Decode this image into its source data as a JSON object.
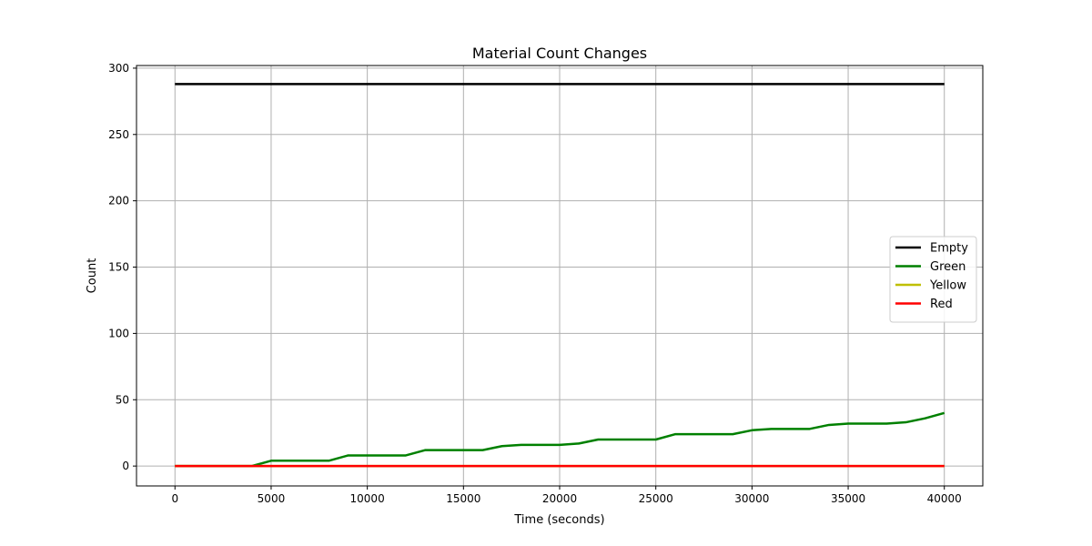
{
  "chart_data": {
    "type": "line",
    "title": "Material Count Changes",
    "xlabel": "Time (seconds)",
    "ylabel": "Count",
    "xlim": [
      -2000,
      42000
    ],
    "ylim": [
      -15,
      302
    ],
    "xticks": [
      0,
      5000,
      10000,
      15000,
      20000,
      25000,
      30000,
      35000,
      40000
    ],
    "yticks": [
      0,
      50,
      100,
      150,
      200,
      250,
      300
    ],
    "grid": true,
    "legend_position": "center-right",
    "x": [
      0,
      1000,
      2000,
      3000,
      4000,
      5000,
      6000,
      7000,
      8000,
      9000,
      10000,
      11000,
      12000,
      13000,
      14000,
      15000,
      16000,
      17000,
      18000,
      19000,
      20000,
      21000,
      22000,
      23000,
      24000,
      25000,
      26000,
      27000,
      28000,
      29000,
      30000,
      31000,
      32000,
      33000,
      34000,
      35000,
      36000,
      37000,
      38000,
      39000,
      40000
    ],
    "series": [
      {
        "name": "Empty",
        "color": "#000000",
        "values": [
          288,
          288,
          288,
          288,
          288,
          288,
          288,
          288,
          288,
          288,
          288,
          288,
          288,
          288,
          288,
          288,
          288,
          288,
          288,
          288,
          288,
          288,
          288,
          288,
          288,
          288,
          288,
          288,
          288,
          288,
          288,
          288,
          288,
          288,
          288,
          288,
          288,
          288,
          288,
          288,
          288
        ]
      },
      {
        "name": "Green",
        "color": "#008000",
        "values": [
          0,
          0,
          0,
          0,
          0,
          4,
          4,
          4,
          4,
          8,
          8,
          8,
          8,
          12,
          12,
          12,
          12,
          15,
          16,
          16,
          16,
          17,
          20,
          20,
          20,
          20,
          24,
          24,
          24,
          24,
          27,
          28,
          28,
          28,
          31,
          32,
          32,
          32,
          33,
          36,
          40
        ]
      },
      {
        "name": "Yellow",
        "color": "#bfbf00",
        "values": [
          0,
          0,
          0,
          0,
          0,
          0,
          0,
          0,
          0,
          0,
          0,
          0,
          0,
          0,
          0,
          0,
          0,
          0,
          0,
          0,
          0,
          0,
          0,
          0,
          0,
          0,
          0,
          0,
          0,
          0,
          0,
          0,
          0,
          0,
          0,
          0,
          0,
          0,
          0,
          0,
          0
        ]
      },
      {
        "name": "Red",
        "color": "#ff0000",
        "values": [
          0,
          0,
          0,
          0,
          0,
          0,
          0,
          0,
          0,
          0,
          0,
          0,
          0,
          0,
          0,
          0,
          0,
          0,
          0,
          0,
          0,
          0,
          0,
          0,
          0,
          0,
          0,
          0,
          0,
          0,
          0,
          0,
          0,
          0,
          0,
          0,
          0,
          0,
          0,
          0,
          0
        ]
      }
    ]
  }
}
